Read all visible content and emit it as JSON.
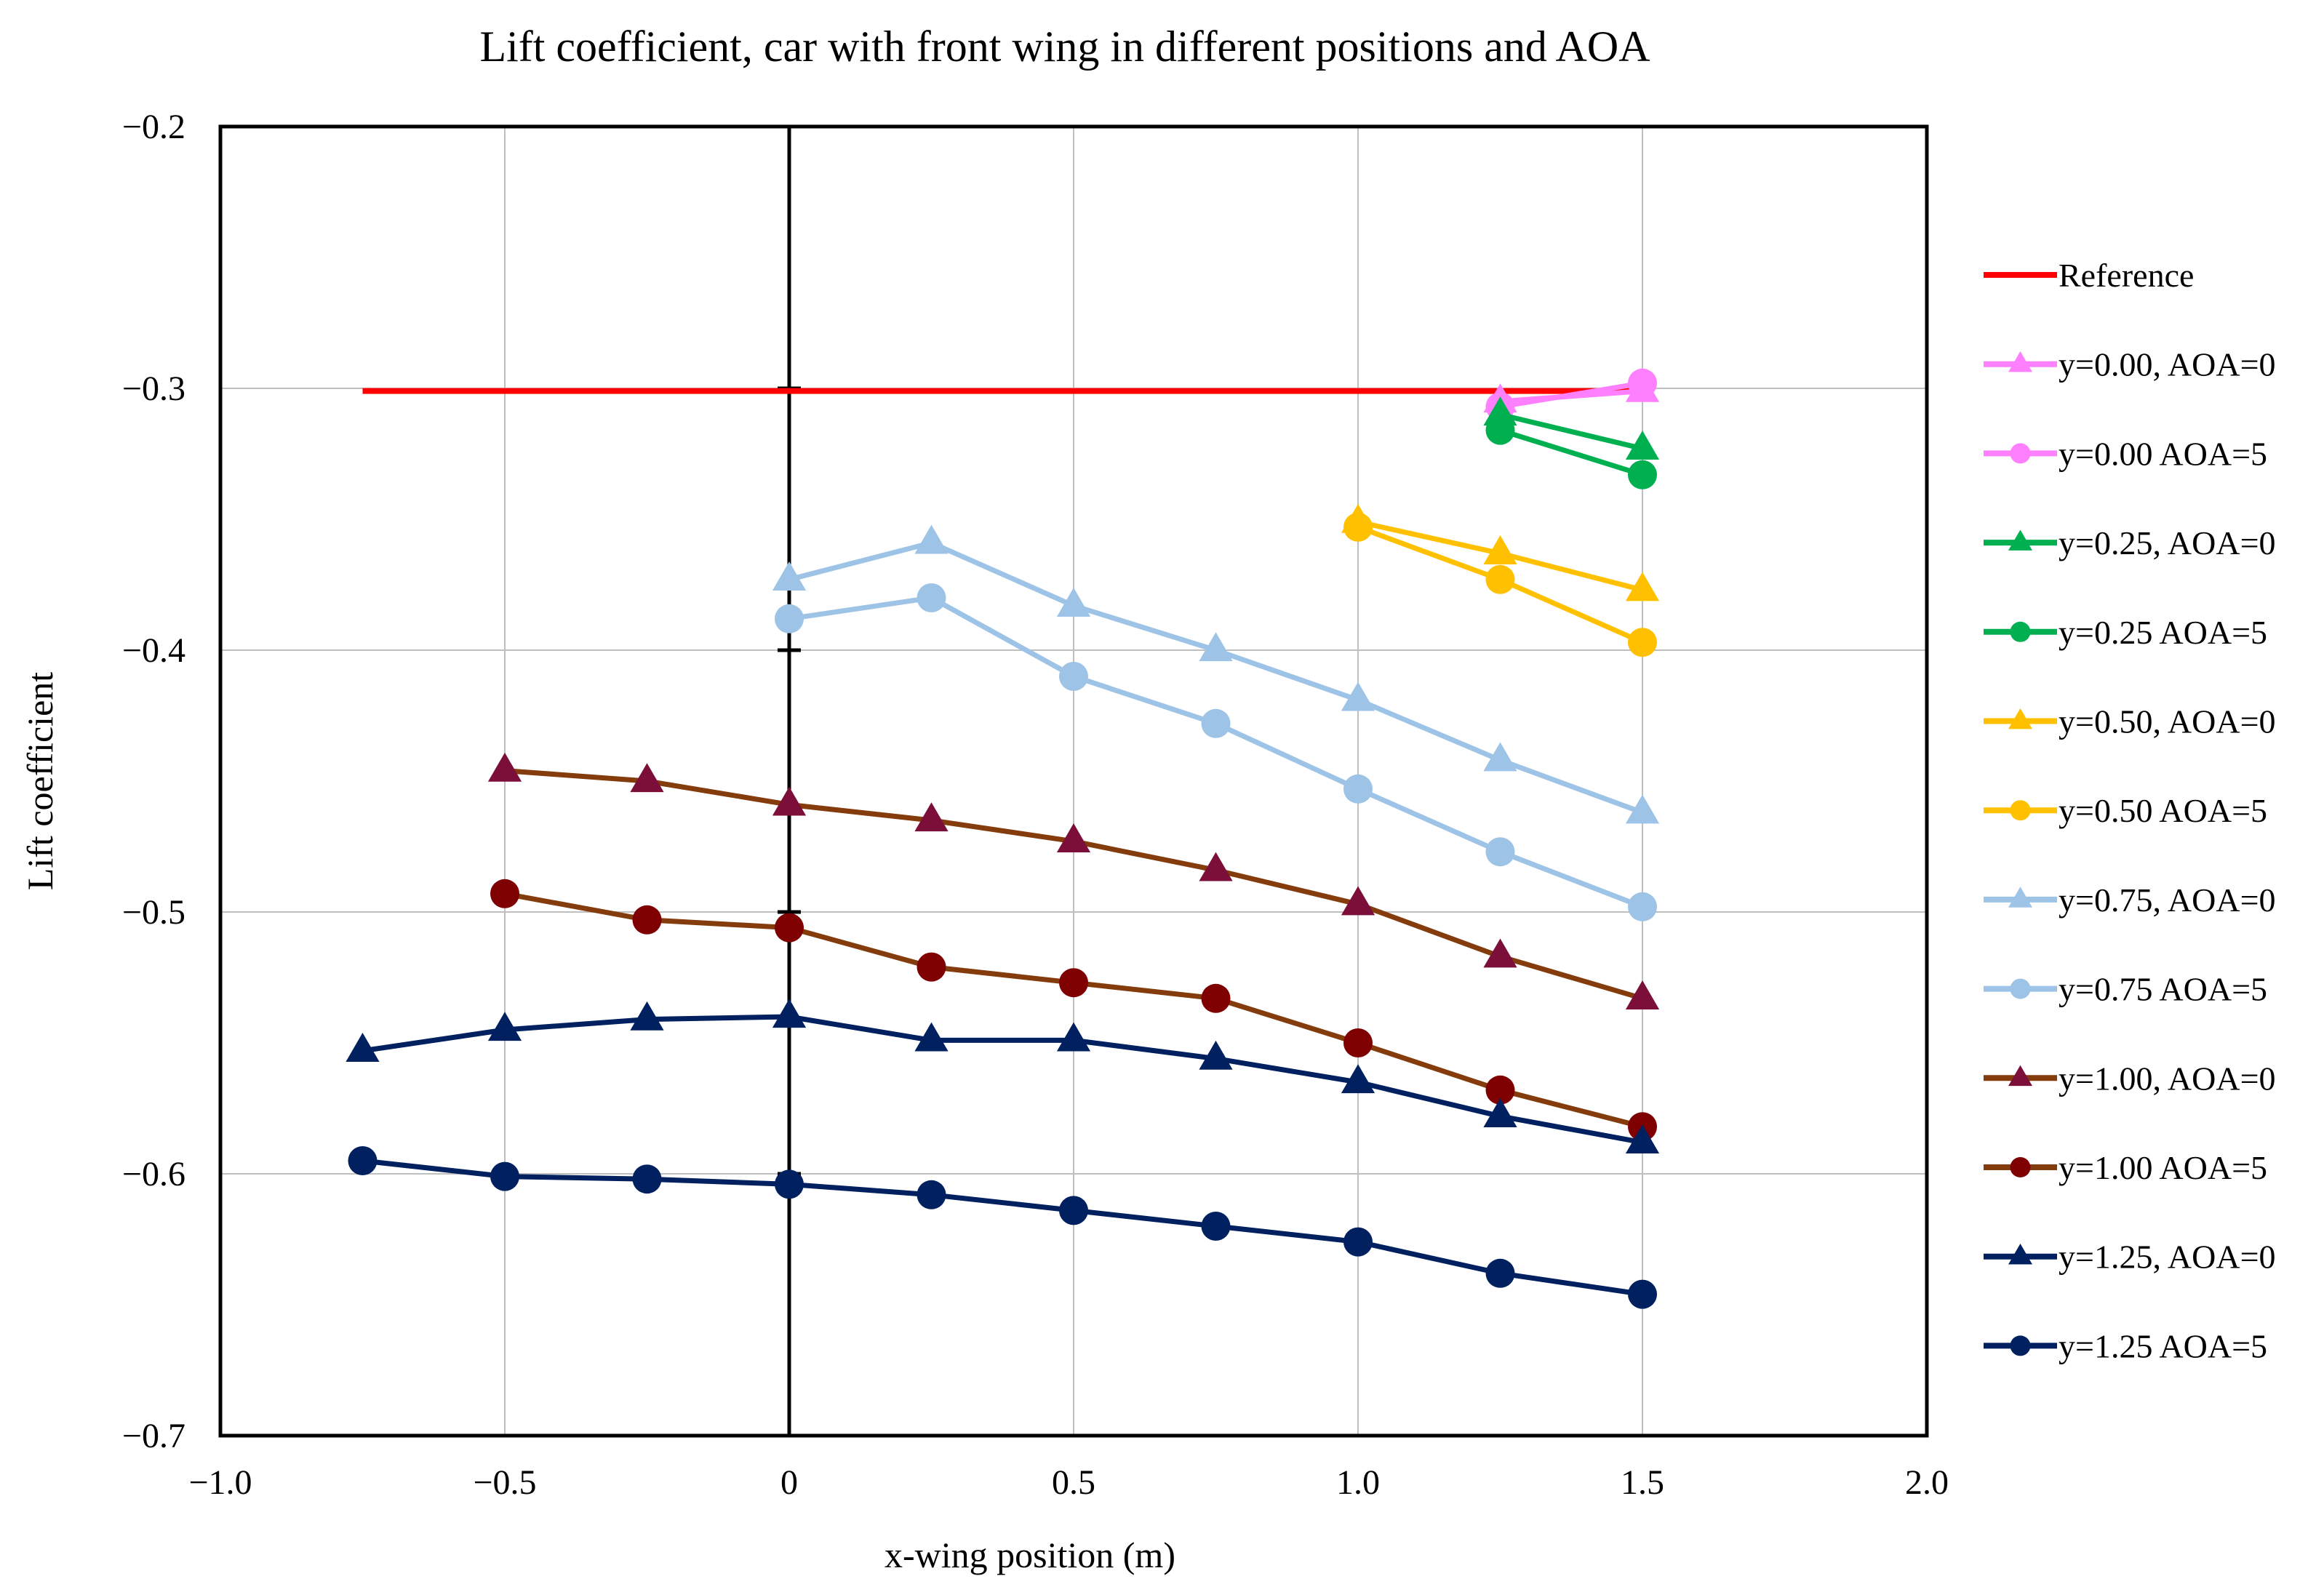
{
  "chart_data": {
    "type": "line",
    "title": "Lift coefficient, car with front wing in different positions and AOA",
    "xlabel": "x-wing position (m)",
    "ylabel": "Lift coefficient",
    "xlim": [
      -1.0,
      2.0
    ],
    "ylim": [
      -0.7,
      -0.2
    ],
    "xticks": [
      -1.0,
      -0.5,
      0,
      0.5,
      1.0,
      1.5,
      2.0
    ],
    "xtick_labels": [
      "−1.0",
      "−0.5",
      "0",
      "0.5",
      "1.0",
      "1.5",
      "2.0"
    ],
    "yticks": [
      -0.2,
      -0.3,
      -0.4,
      -0.5,
      -0.6,
      -0.7
    ],
    "ytick_labels": [
      "−0.2",
      "−0.3",
      "−0.4",
      "−0.5",
      "−0.6",
      "−0.7"
    ],
    "grid": true,
    "legend_position": "right",
    "series": [
      {
        "name": "Reference",
        "color": "#ff0000",
        "marker": "none",
        "x": [
          -0.75,
          1.5
        ],
        "y": [
          -0.301,
          -0.301
        ]
      },
      {
        "name": "y=0.00, AOA=0",
        "color": "#ff80ff",
        "marker": "triangle",
        "x": [
          1.25,
          1.5
        ],
        "y": [
          -0.305,
          -0.301
        ]
      },
      {
        "name": "y=0.00 AOA=5",
        "color": "#ff80ff",
        "marker": "circle",
        "x": [
          1.25,
          1.5
        ],
        "y": [
          -0.307,
          -0.298
        ]
      },
      {
        "name": "y=0.25, AOA=0",
        "color": "#00b050",
        "marker": "triangle",
        "x": [
          1.25,
          1.5
        ],
        "y": [
          -0.31,
          -0.323
        ]
      },
      {
        "name": "y=0.25 AOA=5",
        "color": "#00b050",
        "marker": "circle",
        "x": [
          1.25,
          1.5
        ],
        "y": [
          -0.316,
          -0.333
        ]
      },
      {
        "name": "y=0.50, AOA=0",
        "color": "#ffc000",
        "marker": "triangle",
        "x": [
          1.0,
          1.25,
          1.5
        ],
        "y": [
          -0.351,
          -0.363,
          -0.377
        ]
      },
      {
        "name": "y=0.50 AOA=5",
        "color": "#ffc000",
        "marker": "circle",
        "x": [
          1.0,
          1.25,
          1.5
        ],
        "y": [
          -0.353,
          -0.373,
          -0.397
        ]
      },
      {
        "name": "y=0.75, AOA=0",
        "color": "#9dc3e6",
        "marker": "triangle",
        "x": [
          0,
          0.25,
          0.5,
          0.75,
          1.0,
          1.25,
          1.5
        ],
        "y": [
          -0.373,
          -0.359,
          -0.383,
          -0.4,
          -0.419,
          -0.442,
          -0.462
        ]
      },
      {
        "name": "y=0.75 AOA=5",
        "color": "#9dc3e6",
        "marker": "circle",
        "x": [
          0,
          0.25,
          0.5,
          0.75,
          1.0,
          1.25,
          1.5
        ],
        "y": [
          -0.388,
          -0.38,
          -0.41,
          -0.428,
          -0.453,
          -0.477,
          -0.498
        ]
      },
      {
        "name": "y=1.00, AOA=0",
        "color": "#843c0c",
        "marker_color": "#7b0f3a",
        "marker": "triangle",
        "x": [
          -0.5,
          -0.25,
          0,
          0.25,
          0.5,
          0.75,
          1.0,
          1.25,
          1.5
        ],
        "y": [
          -0.446,
          -0.45,
          -0.459,
          -0.465,
          -0.473,
          -0.484,
          -0.497,
          -0.517,
          -0.533
        ]
      },
      {
        "name": "y=1.00 AOA=5",
        "color": "#843c0c",
        "marker_color": "#7f0000",
        "marker": "circle",
        "x": [
          -0.5,
          -0.25,
          0,
          0.25,
          0.5,
          0.75,
          1.0,
          1.25,
          1.5
        ],
        "y": [
          -0.493,
          -0.503,
          -0.506,
          -0.521,
          -0.527,
          -0.533,
          -0.55,
          -0.568,
          -0.582
        ]
      },
      {
        "name": "y=1.25, AOA=0",
        "color": "#002060",
        "marker": "triangle",
        "x": [
          -0.75,
          -0.5,
          -0.25,
          0,
          0.25,
          0.5,
          0.75,
          1.0,
          1.25,
          1.5
        ],
        "y": [
          -0.553,
          -0.545,
          -0.541,
          -0.54,
          -0.549,
          -0.549,
          -0.556,
          -0.565,
          -0.578,
          -0.588
        ]
      },
      {
        "name": "y=1.25 AOA=5",
        "color": "#002060",
        "marker": "circle",
        "x": [
          -0.75,
          -0.5,
          -0.25,
          0,
          0.25,
          0.5,
          0.75,
          1.0,
          1.25,
          1.5
        ],
        "y": [
          -0.595,
          -0.601,
          -0.602,
          -0.604,
          -0.608,
          -0.614,
          -0.62,
          -0.626,
          -0.638,
          -0.646
        ]
      }
    ]
  }
}
